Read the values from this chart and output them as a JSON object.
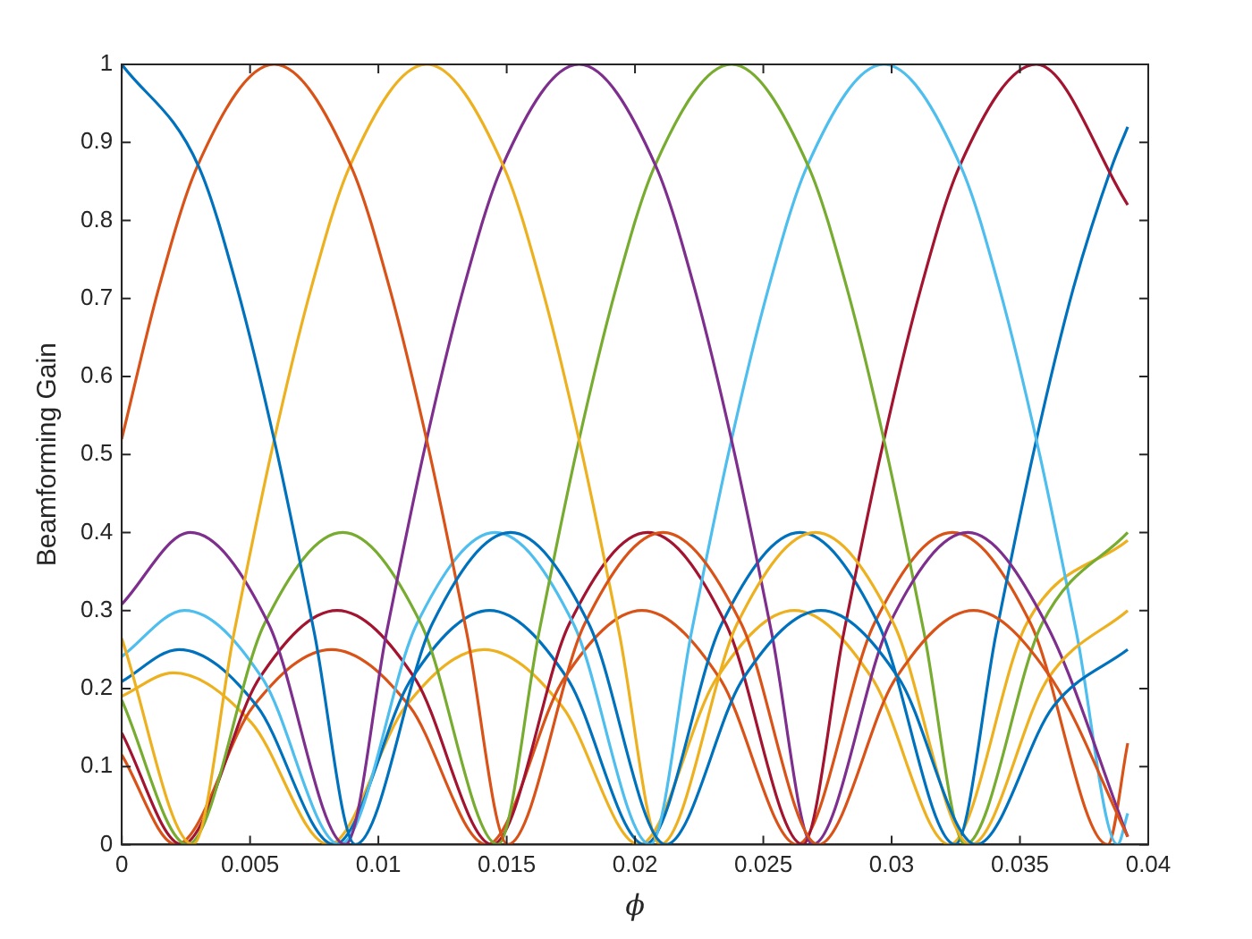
{
  "chart_data": {
    "type": "line",
    "xlabel": "ϕ",
    "ylabel": "Beamforming Gain",
    "xlim": [
      0,
      0.04
    ],
    "xticks": [
      0,
      0.005,
      0.01,
      0.015,
      0.02,
      0.025,
      0.03,
      0.035,
      0.04
    ],
    "ylim": [
      0,
      1
    ],
    "yticks": [
      0,
      0.1,
      0.2,
      0.3,
      0.4,
      0.5,
      0.6,
      0.7,
      0.8,
      0.9,
      1
    ],
    "grid": false,
    "legend": false,
    "line_style": "solid",
    "series": [
      {
        "color": "#0072bd",
        "x": [
          0,
          0.003,
          0.0045,
          0.006,
          0.0075,
          0.0091,
          0.0121,
          0.01515,
          0.0182,
          0.0212,
          0.0242,
          0.02725,
          0.0303,
          0.0333,
          0.0363,
          0.0392
        ],
        "values": [
          1,
          0.869,
          0.713,
          0.51,
          0.272,
          0,
          0.283,
          0.4,
          0.283,
          0,
          0.212,
          0.3,
          0.212,
          0,
          0.177,
          0.25
        ]
      },
      {
        "color": "#d95319",
        "x": [
          0,
          0.00144,
          0.00294,
          0.00594,
          0.00894,
          0.01044,
          0.01194,
          0.01344,
          0.01504,
          0.01804,
          0.02109,
          0.02414,
          0.02714,
          0.03014,
          0.03319,
          0.03624,
          0.0392
        ],
        "values": [
          0.52,
          0.713,
          0.869,
          1,
          0.869,
          0.713,
          0.51,
          0.272,
          0,
          0.283,
          0.4,
          0.283,
          0,
          0.212,
          0.3,
          0.212,
          0.01
        ]
      },
      {
        "color": "#edb120",
        "x": [
          0,
          0.00278,
          0.00438,
          0.00588,
          0.00738,
          0.00888,
          0.01188,
          0.01488,
          0.01638,
          0.01788,
          0.01938,
          0.02098,
          0.02398,
          0.02703,
          0.03008,
          0.03308,
          0.03608,
          0.0392
        ],
        "values": [
          0.264,
          0,
          0.272,
          0.51,
          0.713,
          0.869,
          1,
          0.869,
          0.713,
          0.51,
          0.272,
          0,
          0.283,
          0.4,
          0.283,
          0,
          0.212,
          0.3
        ]
      },
      {
        "color": "#7e2f8e",
        "x": [
          0,
          0.00267,
          0.00572,
          0.00872,
          0.01032,
          0.01182,
          0.01332,
          0.01482,
          0.01782,
          0.02082,
          0.02232,
          0.02382,
          0.02532,
          0.02692,
          0.02992,
          0.03297,
          0.03602,
          0.0392
        ],
        "values": [
          0.308,
          0.4,
          0.283,
          0,
          0.272,
          0.51,
          0.713,
          0.869,
          1,
          0.869,
          0.713,
          0.51,
          0.272,
          0,
          0.283,
          0.4,
          0.283,
          0.01
        ]
      },
      {
        "color": "#77ac30",
        "x": [
          0,
          0.00256,
          0.00556,
          0.00861,
          0.01166,
          0.01466,
          0.01626,
          0.01776,
          0.01926,
          0.02076,
          0.02376,
          0.02676,
          0.02826,
          0.02976,
          0.03126,
          0.03286,
          0.03586,
          0.0392
        ],
        "values": [
          0.185,
          0,
          0.283,
          0.4,
          0.283,
          0,
          0.272,
          0.51,
          0.713,
          0.869,
          1,
          0.869,
          0.713,
          0.51,
          0.272,
          0,
          0.283,
          0.4
        ]
      },
      {
        "color": "#4dbeee",
        "x": [
          0,
          0.00245,
          0.0055,
          0.0085,
          0.0115,
          0.01455,
          0.0176,
          0.0206,
          0.0222,
          0.0237,
          0.0252,
          0.0267,
          0.0297,
          0.0327,
          0.0342,
          0.0357,
          0.0372,
          0.0388,
          0.0392
        ],
        "values": [
          0.241,
          0.3,
          0.212,
          0,
          0.283,
          0.4,
          0.283,
          0,
          0.272,
          0.51,
          0.713,
          0.869,
          1,
          0.869,
          0.713,
          0.51,
          0.272,
          0,
          0.04
        ]
      },
      {
        "color": "#a2142f",
        "x": [
          0,
          0.00234,
          0.00534,
          0.00839,
          0.01144,
          0.01444,
          0.01744,
          0.02049,
          0.02354,
          0.02654,
          0.02814,
          0.02964,
          0.03114,
          0.03264,
          0.03564,
          0.0392
        ],
        "values": [
          0.143,
          0,
          0.212,
          0.3,
          0.212,
          0,
          0.283,
          0.4,
          0.283,
          0,
          0.272,
          0.51,
          0.713,
          0.869,
          1,
          0.82
        ]
      },
      {
        "color": "#0072bd",
        "x": [
          0,
          0.00223,
          0.00528,
          0.00828,
          0.01128,
          0.01433,
          0.01738,
          0.02038,
          0.02338,
          0.02643,
          0.02948,
          0.03248,
          0.03408,
          0.03558,
          0.03708,
          0.03858,
          0.0392
        ],
        "values": [
          0.209,
          0.25,
          0.177,
          0,
          0.212,
          0.3,
          0.212,
          0,
          0.283,
          0.4,
          0.283,
          0,
          0.272,
          0.51,
          0.713,
          0.869,
          0.92
        ]
      },
      {
        "color": "#d95319",
        "x": [
          0,
          0.00212,
          0.00512,
          0.00817,
          0.01122,
          0.01422,
          0.01722,
          0.02027,
          0.02332,
          0.02632,
          0.02932,
          0.03237,
          0.03542,
          0.03842,
          0.0392
        ],
        "values": [
          0.115,
          0,
          0.177,
          0.25,
          0.177,
          0,
          0.212,
          0.3,
          0.212,
          0,
          0.283,
          0.4,
          0.283,
          0,
          0.13
        ]
      },
      {
        "color": "#edb120",
        "x": [
          0,
          0.00201,
          0.00506,
          0.00806,
          0.01106,
          0.01411,
          0.01716,
          0.02016,
          0.02316,
          0.02621,
          0.02926,
          0.03226,
          0.03526,
          0.0392
        ],
        "values": [
          0.19,
          0.22,
          0.156,
          0,
          0.177,
          0.25,
          0.177,
          0,
          0.212,
          0.3,
          0.212,
          0,
          0.283,
          0.39
        ]
      }
    ]
  }
}
